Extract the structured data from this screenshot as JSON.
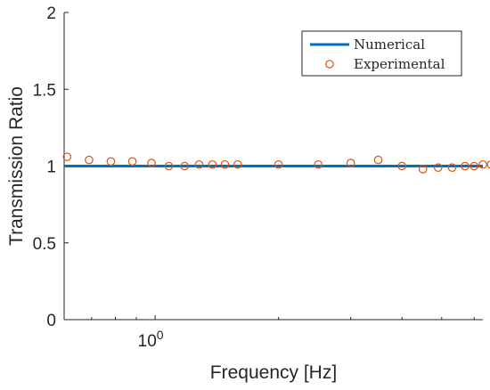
{
  "chart_data": {
    "type": "scatter",
    "xlabel": "Frequency [Hz]",
    "ylabel": "Transmission Ratio",
    "xscale": "log",
    "xlim": [
      0.6,
      6.3
    ],
    "ylim": [
      0,
      2
    ],
    "yticks": [
      0,
      0.5,
      1,
      1.5,
      2
    ],
    "ytick_labels": [
      "0",
      "0.5",
      "1",
      "1.5",
      "2"
    ],
    "xtick_major": [
      {
        "value": 1,
        "base": "10",
        "exp": "0"
      }
    ],
    "grid": false,
    "legend_position": "top-right",
    "series": [
      {
        "name": "Numerical",
        "kind": "line",
        "color": "#0072BD",
        "x": [
          0.6,
          6.3
        ],
        "y": [
          1.0,
          1.0
        ]
      },
      {
        "name": "Experimental",
        "kind": "marker",
        "marker": "circle",
        "color": "#D95319",
        "x": [
          0.61,
          0.69,
          0.78,
          0.88,
          0.98,
          1.08,
          1.18,
          1.28,
          1.38,
          1.48,
          1.59,
          2.0,
          2.5,
          3.0,
          3.5,
          4.0,
          4.5,
          4.9,
          5.3,
          5.7,
          6.0,
          6.3,
          6.6,
          6.9
        ],
        "y": [
          1.06,
          1.04,
          1.03,
          1.03,
          1.02,
          1.0,
          1.0,
          1.01,
          1.01,
          1.01,
          1.01,
          1.01,
          1.01,
          1.02,
          1.04,
          1.0,
          0.98,
          0.99,
          0.99,
          1.0,
          1.0,
          1.01,
          1.01,
          1.02
        ]
      }
    ]
  }
}
